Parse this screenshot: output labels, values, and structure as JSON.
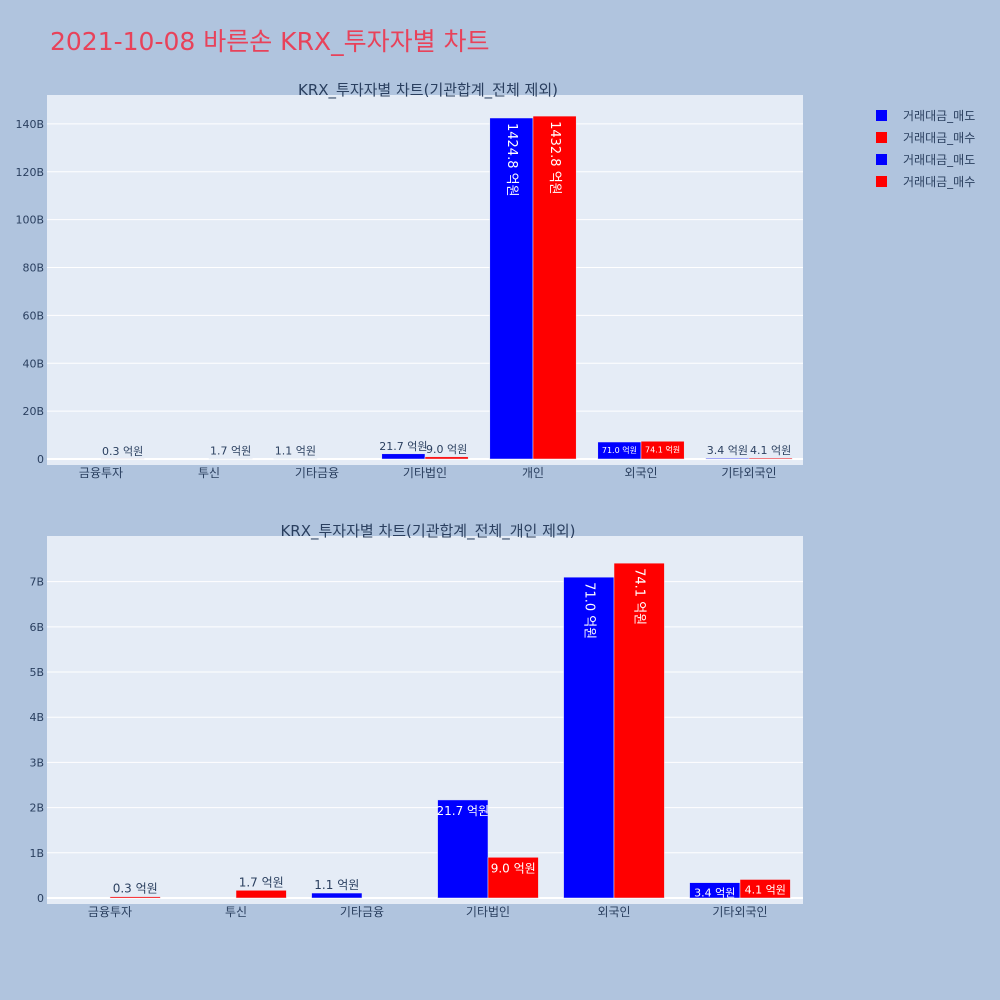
{
  "page": {
    "title": "2021-10-08 바른손 KRX_투자자별 차트"
  },
  "legend": [
    {
      "name": "거래대금_매도",
      "color": "#0000ff"
    },
    {
      "name": "거래대금_매수",
      "color": "#ff0000"
    },
    {
      "name": "거래대금_매도",
      "color": "#0000ff"
    },
    {
      "name": "거래대금_매수",
      "color": "#ff0000"
    }
  ],
  "chart_data": [
    {
      "type": "bar",
      "title": "KRX_투자자별 차트(기관합계_전체 제외)",
      "categories": [
        "금융투자",
        "투신",
        "기타금융",
        "기타법인",
        "개인",
        "외국인",
        "기타외국인"
      ],
      "series": [
        {
          "name": "거래대금_매도",
          "color": "#0000ff",
          "values": [
            0,
            0,
            0.11,
            2.17,
            142.48,
            7.1,
            0.34
          ],
          "labels": [
            "",
            "",
            "1.1 억원",
            "21.7 억원",
            "1424.8 억원",
            "71.0 억원",
            "3.4 억원"
          ]
        },
        {
          "name": "거래대금_매수",
          "color": "#ff0000",
          "values": [
            0.03,
            0.17,
            0,
            0.9,
            143.28,
            7.41,
            0.41
          ],
          "labels": [
            "0.3 억원",
            "1.7 억원",
            "",
            "9.0 억원",
            "1432.8 억원",
            "74.1 억원",
            "4.1 억원"
          ]
        }
      ],
      "yticks": [
        "0",
        "20B",
        "40B",
        "60B",
        "80B",
        "100B",
        "120B",
        "140B"
      ],
      "ytick_values": [
        0,
        20,
        40,
        60,
        80,
        100,
        120,
        140
      ],
      "ylim": [
        0,
        150
      ],
      "xlabel": "",
      "ylabel": "",
      "grid": true
    },
    {
      "type": "bar",
      "title": "KRX_투자자별 차트(기관합계_전체_개인 제외)",
      "categories": [
        "금융투자",
        "투신",
        "기타금융",
        "기타법인",
        "외국인",
        "기타외국인"
      ],
      "series": [
        {
          "name": "거래대금_매도",
          "color": "#0000ff",
          "values": [
            0,
            0,
            0.11,
            2.17,
            7.1,
            0.34
          ],
          "labels": [
            "",
            "",
            "1.1 억원",
            "21.7 억원",
            "71.0 억원",
            "3.4 억원"
          ]
        },
        {
          "name": "거래대금_매수",
          "color": "#ff0000",
          "values": [
            0.03,
            0.17,
            0,
            0.9,
            7.41,
            0.41
          ],
          "labels": [
            "0.3 억원",
            "1.7 억원",
            "",
            "9.0 억원",
            "74.1 억원",
            "4.1 억원"
          ]
        }
      ],
      "yticks": [
        "0",
        "1B",
        "2B",
        "3B",
        "4B",
        "5B",
        "6B",
        "7B"
      ],
      "ytick_values": [
        0,
        1,
        2,
        3,
        4,
        5,
        6,
        7
      ],
      "ylim": [
        0,
        7.9
      ],
      "xlabel": "",
      "ylabel": "",
      "grid": true
    }
  ]
}
